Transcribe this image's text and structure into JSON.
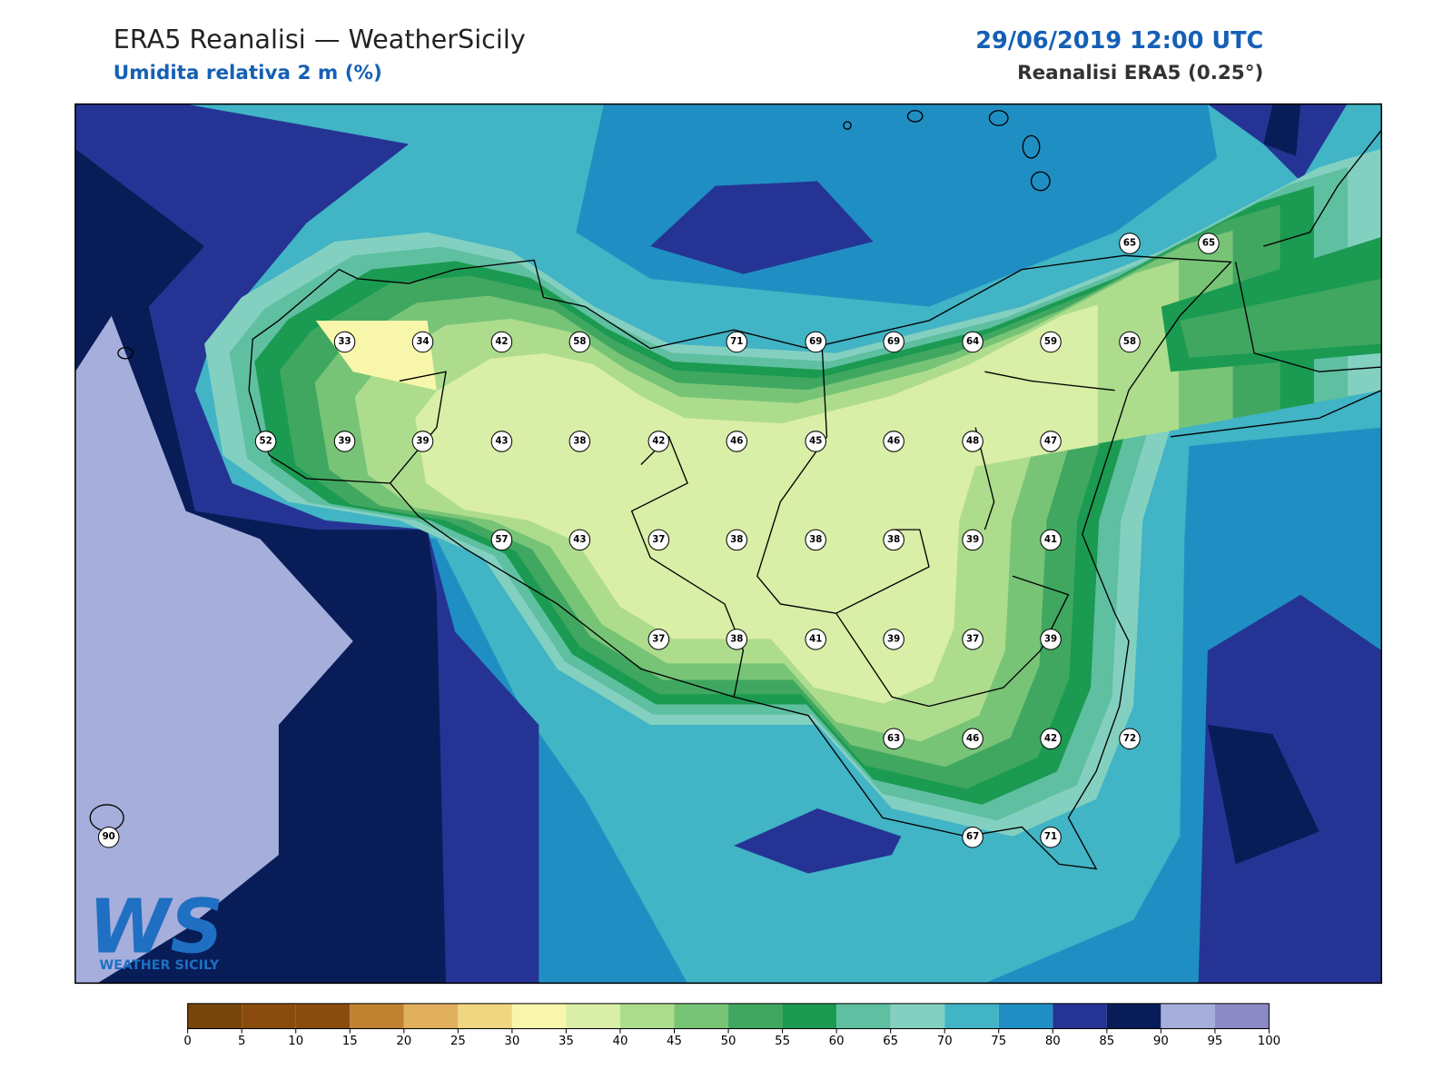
{
  "header": {
    "title": "ERA5 Reanalisi — WeatherSicily",
    "subtitle": "Umidita relativa 2 m (%)",
    "datetime": "29/06/2019 12:00 UTC",
    "source": "Reanalisi ERA5 (0.25°)"
  },
  "stations": [
    65,
    65,
    33,
    34,
    42,
    58,
    71,
    69,
    69,
    64,
    59,
    58,
    52,
    39,
    39,
    43,
    38,
    42,
    46,
    45,
    46,
    48,
    47,
    57,
    43,
    37,
    38,
    38,
    38,
    39,
    41,
    37,
    38,
    41,
    39,
    37,
    39,
    63,
    46,
    42,
    72,
    90,
    67,
    71
  ],
  "colorbar": {
    "ticks": [
      0,
      5,
      10,
      15,
      20,
      25,
      30,
      35,
      40,
      45,
      50,
      55,
      60,
      65,
      70,
      75,
      80,
      85,
      90,
      95,
      100
    ],
    "colors": [
      "#774409",
      "#8a4c0e",
      "#8a4c0e",
      "#c08130",
      "#e0b05c",
      "#f0d680",
      "#f7f6ab",
      "#d9eea6",
      "#addc8d",
      "#77c477",
      "#40a760",
      "#1b9a51",
      "#5fbfa1",
      "#83d0c1",
      "#41b4c5",
      "#1f8fc3",
      "#253494",
      "#081d58",
      "#a6aedc",
      "#8b89c6"
    ]
  },
  "logo": {
    "mark": "WS",
    "name": "WEATHER SICILY"
  }
}
